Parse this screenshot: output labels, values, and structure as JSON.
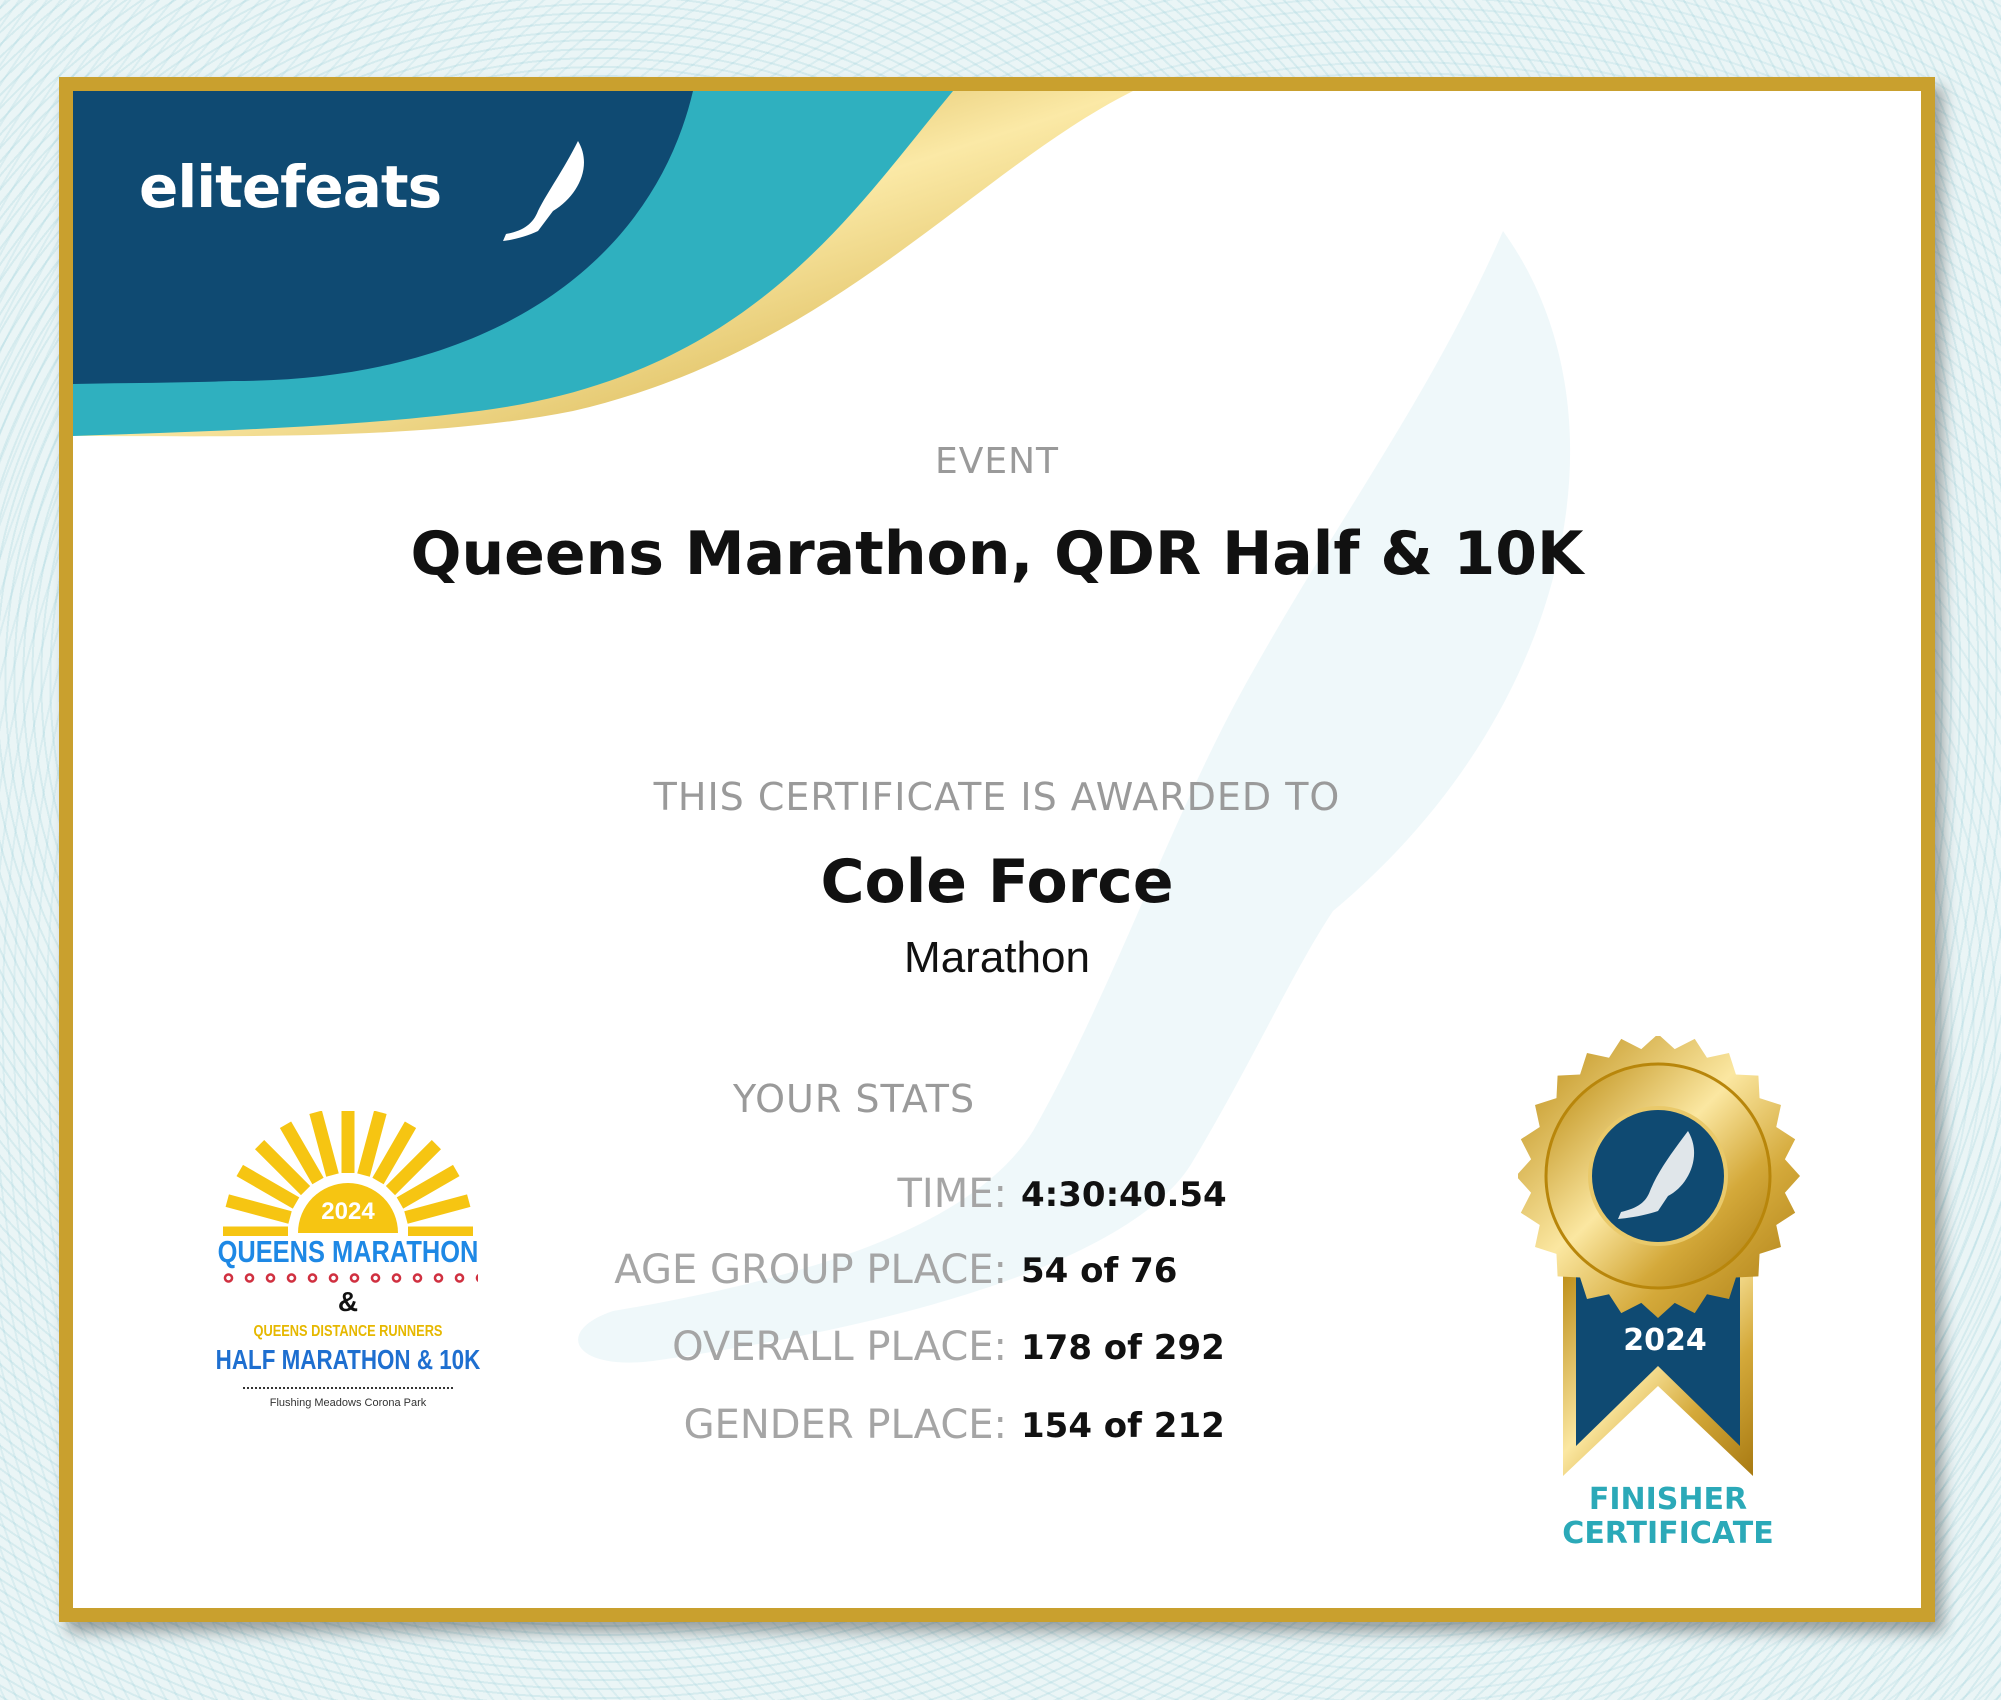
{
  "brand": {
    "logo_text": "elitefeats"
  },
  "event": {
    "label": "EVENT",
    "name": "Queens Marathon, QDR Half & 10K"
  },
  "award": {
    "label": "THIS CERTIFICATE IS AWARDED TO",
    "name": "Cole Force",
    "race": "Marathon"
  },
  "stats": {
    "heading": "YOUR STATS",
    "rows": [
      {
        "label": "TIME:",
        "value": "4:30:40.54"
      },
      {
        "label": "AGE GROUP PLACE:",
        "value": "54 of 76"
      },
      {
        "label": "OVERALL PLACE:",
        "value": "178 of 292"
      },
      {
        "label": "GENDER PLACE:",
        "value": "154 of 212"
      }
    ]
  },
  "event_logo": {
    "year": "2024",
    "arc_text": "QUEENS DISTANCE RUNNERS",
    "line1": "QUEENS MARATHON",
    "amp": "&",
    "line2": "QUEENS DISTANCE RUNNERS",
    "line3": "HALF MARATHON & 10K",
    "location": "Flushing Meadows Corona Park"
  },
  "medal": {
    "year": "2024",
    "caption_line1": "FINISHER",
    "caption_line2": "CERTIFICATE"
  },
  "colors": {
    "navy": "#0f4a72",
    "teal": "#2fb0bf",
    "gold": "#c9a02e",
    "caption": "#2ba9b8"
  }
}
